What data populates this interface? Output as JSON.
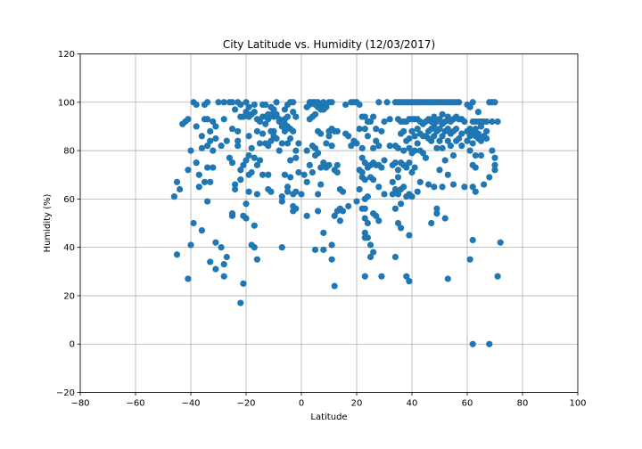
{
  "chart_data": {
    "type": "scatter",
    "title": "City Latitude vs. Humidity  (12/03/2017)",
    "xlabel": "Latitude",
    "ylabel": "Humidity (%)",
    "xlim": [
      -80,
      100
    ],
    "ylim": [
      -20,
      120
    ],
    "xticks": [
      -80,
      -60,
      -40,
      -20,
      0,
      20,
      40,
      60,
      80,
      100
    ],
    "yticks": [
      -20,
      0,
      20,
      40,
      60,
      80,
      100,
      120
    ],
    "grid": true,
    "marker_color": "#1f77b4",
    "points": [
      [
        -46,
        61
      ],
      [
        -45,
        67
      ],
      [
        -45,
        37
      ],
      [
        -44,
        64
      ],
      [
        -43,
        91
      ],
      [
        -42,
        92
      ],
      [
        -41,
        93
      ],
      [
        -41,
        72
      ],
      [
        -41,
        27
      ],
      [
        -40,
        41
      ],
      [
        -40,
        80
      ],
      [
        -39,
        50
      ],
      [
        -39,
        100
      ],
      [
        -38,
        99
      ],
      [
        -38,
        90
      ],
      [
        -38,
        75
      ],
      [
        -37,
        70
      ],
      [
        -37,
        65
      ],
      [
        -36,
        86
      ],
      [
        -36,
        81
      ],
      [
        -36,
        47
      ],
      [
        -35,
        99
      ],
      [
        -35,
        93
      ],
      [
        -35,
        67
      ],
      [
        -34,
        100
      ],
      [
        -34,
        93
      ],
      [
        -34,
        82
      ],
      [
        -34,
        73
      ],
      [
        -34,
        59
      ],
      [
        -33,
        88
      ],
      [
        -33,
        84
      ],
      [
        -33,
        67
      ],
      [
        -33,
        34
      ],
      [
        -32,
        92
      ],
      [
        -32,
        80
      ],
      [
        -32,
        73
      ],
      [
        -31,
        90
      ],
      [
        -31,
        85
      ],
      [
        -31,
        42
      ],
      [
        -31,
        31
      ],
      [
        -30,
        100
      ],
      [
        -29,
        82
      ],
      [
        -29,
        40
      ],
      [
        -28,
        100
      ],
      [
        -28,
        93
      ],
      [
        -28,
        33
      ],
      [
        -28,
        28
      ],
      [
        -27,
        36
      ],
      [
        -27,
        84
      ],
      [
        -26,
        77
      ],
      [
        -26,
        100
      ],
      [
        -25,
        100
      ],
      [
        -25,
        89
      ],
      [
        -25,
        75
      ],
      [
        -25,
        54
      ],
      [
        -25,
        53
      ],
      [
        -24,
        97
      ],
      [
        -24,
        66
      ],
      [
        -24,
        64
      ],
      [
        -23,
        100
      ],
      [
        -23,
        88
      ],
      [
        -23,
        84
      ],
      [
        -23,
        82
      ],
      [
        -22,
        99
      ],
      [
        -22,
        94
      ],
      [
        -22,
        72
      ],
      [
        -22,
        68
      ],
      [
        -22,
        17
      ],
      [
        -21,
        94
      ],
      [
        -21,
        74
      ],
      [
        -21,
        53
      ],
      [
        -21,
        25
      ],
      [
        -20,
        100
      ],
      [
        -20,
        96
      ],
      [
        -20,
        76
      ],
      [
        -20,
        58
      ],
      [
        -20,
        52
      ],
      [
        -19,
        98
      ],
      [
        -19,
        94
      ],
      [
        -19,
        86
      ],
      [
        -19,
        78
      ],
      [
        -19,
        70
      ],
      [
        -19,
        63
      ],
      [
        -18,
        95
      ],
      [
        -18,
        81
      ],
      [
        -18,
        71
      ],
      [
        -18,
        41
      ],
      [
        -17,
        99
      ],
      [
        -17,
        96
      ],
      [
        -17,
        77
      ],
      [
        -17,
        49
      ],
      [
        -17,
        40
      ],
      [
        -16,
        93
      ],
      [
        -16,
        88
      ],
      [
        -16,
        74
      ],
      [
        -16,
        62
      ],
      [
        -16,
        35
      ],
      [
        -15,
        92
      ],
      [
        -15,
        83
      ],
      [
        -15,
        76
      ],
      [
        -14,
        99
      ],
      [
        -14,
        94
      ],
      [
        -14,
        87
      ],
      [
        -14,
        70
      ],
      [
        -13,
        99
      ],
      [
        -13,
        94
      ],
      [
        -13,
        91
      ],
      [
        -13,
        83
      ],
      [
        -12,
        95
      ],
      [
        -12,
        93
      ],
      [
        -12,
        82
      ],
      [
        -12,
        70
      ],
      [
        -12,
        64
      ],
      [
        -11,
        98
      ],
      [
        -11,
        88
      ],
      [
        -11,
        84
      ],
      [
        -11,
        63
      ],
      [
        -10,
        97
      ],
      [
        -10,
        96
      ],
      [
        -10,
        94
      ],
      [
        -10,
        88
      ],
      [
        -10,
        86
      ],
      [
        -9,
        100
      ],
      [
        -9,
        95
      ],
      [
        -9,
        85
      ],
      [
        -8,
        93
      ],
      [
        -8,
        92
      ],
      [
        -8,
        80
      ],
      [
        -7,
        90
      ],
      [
        -7,
        83
      ],
      [
        -7,
        61
      ],
      [
        -7,
        59
      ],
      [
        -7,
        40
      ],
      [
        -6,
        97
      ],
      [
        -6,
        93
      ],
      [
        -6,
        91
      ],
      [
        -6,
        88
      ],
      [
        -6,
        70
      ],
      [
        -5,
        99
      ],
      [
        -5,
        94
      ],
      [
        -5,
        90
      ],
      [
        -5,
        83
      ],
      [
        -5,
        65
      ],
      [
        -5,
        63
      ],
      [
        -4,
        100
      ],
      [
        -4,
        89
      ],
      [
        -4,
        85
      ],
      [
        -4,
        69
      ],
      [
        -4,
        76
      ],
      [
        -3,
        100
      ],
      [
        -3,
        96
      ],
      [
        -3,
        88
      ],
      [
        -3,
        62
      ],
      [
        -3,
        57
      ],
      [
        -3,
        55
      ],
      [
        -2,
        94
      ],
      [
        -2,
        80
      ],
      [
        -2,
        77
      ],
      [
        -2,
        63
      ],
      [
        -2,
        56
      ],
      [
        -1,
        83
      ],
      [
        -1,
        71
      ],
      [
        0,
        62
      ],
      [
        1,
        70
      ],
      [
        2,
        98
      ],
      [
        2,
        80
      ],
      [
        2,
        67
      ],
      [
        2,
        53
      ],
      [
        3,
        100
      ],
      [
        3,
        99
      ],
      [
        3,
        93
      ],
      [
        3,
        74
      ],
      [
        4,
        100
      ],
      [
        4,
        94
      ],
      [
        4,
        82
      ],
      [
        4,
        71
      ],
      [
        5,
        100
      ],
      [
        5,
        99
      ],
      [
        5,
        95
      ],
      [
        5,
        81
      ],
      [
        5,
        78
      ],
      [
        5,
        39
      ],
      [
        6,
        100
      ],
      [
        6,
        98
      ],
      [
        6,
        88
      ],
      [
        6,
        79
      ],
      [
        6,
        62
      ],
      [
        6,
        55
      ],
      [
        7,
        99
      ],
      [
        7,
        97
      ],
      [
        7,
        87
      ],
      [
        7,
        66
      ],
      [
        7,
        73
      ],
      [
        8,
        100
      ],
      [
        8,
        97
      ],
      [
        8,
        75
      ],
      [
        8,
        46
      ],
      [
        8,
        39
      ],
      [
        9,
        98
      ],
      [
        9,
        83
      ],
      [
        9,
        73
      ],
      [
        10,
        100
      ],
      [
        10,
        88
      ],
      [
        10,
        86
      ],
      [
        10,
        74
      ],
      [
        11,
        100
      ],
      [
        11,
        89
      ],
      [
        11,
        82
      ],
      [
        11,
        41
      ],
      [
        11,
        35
      ],
      [
        12,
        88
      ],
      [
        12,
        72
      ],
      [
        12,
        53
      ],
      [
        12,
        24
      ],
      [
        13,
        88
      ],
      [
        13,
        74
      ],
      [
        13,
        71
      ],
      [
        13,
        55
      ],
      [
        14,
        64
      ],
      [
        14,
        56
      ],
      [
        14,
        51
      ],
      [
        15,
        63
      ],
      [
        15,
        55
      ],
      [
        16,
        99
      ],
      [
        16,
        87
      ],
      [
        17,
        86
      ],
      [
        17,
        57
      ],
      [
        18,
        100
      ],
      [
        18,
        82
      ],
      [
        19,
        100
      ],
      [
        19,
        84
      ],
      [
        20,
        100
      ],
      [
        20,
        83
      ],
      [
        20,
        59
      ],
      [
        21,
        99
      ],
      [
        21,
        89
      ],
      [
        21,
        72
      ],
      [
        21,
        64
      ],
      [
        22,
        94
      ],
      [
        22,
        81
      ],
      [
        22,
        77
      ],
      [
        22,
        71
      ],
      [
        22,
        69
      ],
      [
        22,
        56
      ],
      [
        23,
        94
      ],
      [
        23,
        89
      ],
      [
        23,
        75
      ],
      [
        23,
        68
      ],
      [
        23,
        60
      ],
      [
        23,
        56
      ],
      [
        23,
        52
      ],
      [
        23,
        46
      ],
      [
        23,
        44
      ],
      [
        23,
        28
      ],
      [
        24,
        92
      ],
      [
        24,
        86
      ],
      [
        24,
        73
      ],
      [
        24,
        61
      ],
      [
        24,
        50
      ],
      [
        24,
        44
      ],
      [
        25,
        92
      ],
      [
        25,
        74
      ],
      [
        25,
        69
      ],
      [
        25,
        41
      ],
      [
        25,
        36
      ],
      [
        26,
        94
      ],
      [
        26,
        81
      ],
      [
        26,
        75
      ],
      [
        26,
        68
      ],
      [
        26,
        54
      ],
      [
        26,
        38
      ],
      [
        27,
        89
      ],
      [
        27,
        84
      ],
      [
        27,
        74
      ],
      [
        27,
        53
      ],
      [
        28,
        100
      ],
      [
        28,
        82
      ],
      [
        28,
        74
      ],
      [
        28,
        65
      ],
      [
        28,
        51
      ],
      [
        29,
        88
      ],
      [
        29,
        73
      ],
      [
        29,
        28
      ],
      [
        30,
        92
      ],
      [
        30,
        76
      ],
      [
        30,
        62
      ],
      [
        31,
        100
      ],
      [
        32,
        93
      ],
      [
        32,
        82
      ],
      [
        33,
        74
      ],
      [
        33,
        67
      ],
      [
        33,
        62
      ],
      [
        34,
        100
      ],
      [
        34,
        82
      ],
      [
        34,
        75
      ],
      [
        34,
        64
      ],
      [
        34,
        56
      ],
      [
        34,
        36
      ],
      [
        35,
        100
      ],
      [
        35,
        93
      ],
      [
        35,
        81
      ],
      [
        35,
        72
      ],
      [
        35,
        69
      ],
      [
        35,
        62
      ],
      [
        35,
        50
      ],
      [
        36,
        100
      ],
      [
        36,
        92
      ],
      [
        36,
        87
      ],
      [
        36,
        75
      ],
      [
        36,
        64
      ],
      [
        36,
        58
      ],
      [
        36,
        48
      ],
      [
        37,
        100
      ],
      [
        37,
        92
      ],
      [
        37,
        88
      ],
      [
        37,
        80
      ],
      [
        37,
        74
      ],
      [
        37,
        65
      ],
      [
        38,
        100
      ],
      [
        38,
        92
      ],
      [
        38,
        84
      ],
      [
        38,
        73
      ],
      [
        38,
        61
      ],
      [
        38,
        28
      ],
      [
        39,
        100
      ],
      [
        39,
        93
      ],
      [
        39,
        85
      ],
      [
        39,
        81
      ],
      [
        39,
        75
      ],
      [
        39,
        62
      ],
      [
        39,
        45
      ],
      [
        39,
        26
      ],
      [
        40,
        100
      ],
      [
        40,
        93
      ],
      [
        40,
        88
      ],
      [
        40,
        79
      ],
      [
        40,
        71
      ],
      [
        40,
        61
      ],
      [
        41,
        100
      ],
      [
        41,
        93
      ],
      [
        41,
        86
      ],
      [
        41,
        80
      ],
      [
        41,
        73
      ],
      [
        42,
        100
      ],
      [
        42,
        93
      ],
      [
        42,
        89
      ],
      [
        42,
        83
      ],
      [
        42,
        63
      ],
      [
        43,
        100
      ],
      [
        43,
        92
      ],
      [
        43,
        87
      ],
      [
        43,
        80
      ],
      [
        43,
        67
      ],
      [
        44,
        100
      ],
      [
        44,
        91
      ],
      [
        44,
        86
      ],
      [
        44,
        79
      ],
      [
        45,
        100
      ],
      [
        45,
        92
      ],
      [
        45,
        86
      ],
      [
        45,
        77
      ],
      [
        46,
        100
      ],
      [
        46,
        93
      ],
      [
        46,
        88
      ],
      [
        46,
        85
      ],
      [
        46,
        66
      ],
      [
        47,
        100
      ],
      [
        47,
        92
      ],
      [
        47,
        89
      ],
      [
        47,
        84
      ],
      [
        47,
        50
      ],
      [
        48,
        100
      ],
      [
        48,
        94
      ],
      [
        48,
        90
      ],
      [
        48,
        86
      ],
      [
        48,
        65
      ],
      [
        49,
        100
      ],
      [
        49,
        92
      ],
      [
        49,
        88
      ],
      [
        49,
        81
      ],
      [
        49,
        56
      ],
      [
        49,
        54
      ],
      [
        50,
        100
      ],
      [
        50,
        93
      ],
      [
        50,
        89
      ],
      [
        50,
        84
      ],
      [
        50,
        72
      ],
      [
        51,
        100
      ],
      [
        51,
        95
      ],
      [
        51,
        91
      ],
      [
        51,
        86
      ],
      [
        51,
        81
      ],
      [
        51,
        65
      ],
      [
        52,
        100
      ],
      [
        52,
        92
      ],
      [
        52,
        88
      ],
      [
        52,
        76
      ],
      [
        52,
        52
      ],
      [
        53,
        100
      ],
      [
        53,
        94
      ],
      [
        53,
        89
      ],
      [
        53,
        84
      ],
      [
        53,
        70
      ],
      [
        53,
        27
      ],
      [
        54,
        100
      ],
      [
        54,
        92
      ],
      [
        54,
        87
      ],
      [
        54,
        82
      ],
      [
        55,
        100
      ],
      [
        55,
        93
      ],
      [
        55,
        88
      ],
      [
        55,
        78
      ],
      [
        55,
        66
      ],
      [
        56,
        100
      ],
      [
        56,
        94
      ],
      [
        56,
        89
      ],
      [
        56,
        84
      ],
      [
        57,
        100
      ],
      [
        57,
        93
      ],
      [
        57,
        85
      ],
      [
        58,
        93
      ],
      [
        58,
        87
      ],
      [
        58,
        82
      ],
      [
        59,
        92
      ],
      [
        59,
        65
      ],
      [
        60,
        99
      ],
      [
        60,
        88
      ],
      [
        60,
        84
      ],
      [
        61,
        98
      ],
      [
        61,
        89
      ],
      [
        61,
        86
      ],
      [
        61,
        80
      ],
      [
        61,
        35
      ],
      [
        62,
        100
      ],
      [
        62,
        92
      ],
      [
        62,
        88
      ],
      [
        62,
        83
      ],
      [
        62,
        74
      ],
      [
        62,
        65
      ],
      [
        62,
        43
      ],
      [
        62,
        0
      ],
      [
        63,
        92
      ],
      [
        63,
        89
      ],
      [
        63,
        86
      ],
      [
        63,
        78
      ],
      [
        63,
        73
      ],
      [
        63,
        63
      ],
      [
        64,
        96
      ],
      [
        64,
        92
      ],
      [
        64,
        87
      ],
      [
        64,
        85
      ],
      [
        65,
        92
      ],
      [
        65,
        90
      ],
      [
        65,
        84
      ],
      [
        65,
        78
      ],
      [
        66,
        92
      ],
      [
        66,
        86
      ],
      [
        66,
        66
      ],
      [
        67,
        92
      ],
      [
        67,
        88
      ],
      [
        67,
        85
      ],
      [
        68,
        100
      ],
      [
        68,
        69
      ],
      [
        68,
        0
      ],
      [
        69,
        100
      ],
      [
        69,
        92
      ],
      [
        69,
        80
      ],
      [
        70,
        100
      ],
      [
        70,
        77
      ],
      [
        70,
        74
      ],
      [
        70,
        72
      ],
      [
        71,
        92
      ],
      [
        71,
        28
      ],
      [
        72,
        42
      ]
    ]
  }
}
